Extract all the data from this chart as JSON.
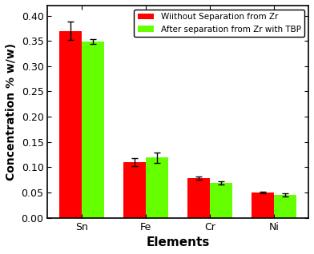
{
  "categories": [
    "Sn",
    "Fe",
    "Cr",
    "Ni"
  ],
  "values_red": [
    0.37,
    0.11,
    0.079,
    0.05
  ],
  "values_green": [
    0.349,
    0.119,
    0.069,
    0.045
  ],
  "errors_red": [
    0.018,
    0.008,
    0.003,
    0.002
  ],
  "errors_green": [
    0.005,
    0.01,
    0.003,
    0.003
  ],
  "color_red": "#FF0000",
  "color_green": "#66FF00",
  "xlabel": "Elements",
  "ylabel": "Concentration % w/w)",
  "ylim": [
    0,
    0.42
  ],
  "yticks": [
    0.0,
    0.05,
    0.1,
    0.15,
    0.2,
    0.25,
    0.3,
    0.35,
    0.4
  ],
  "legend_red": "Wiithout Separation from Zr",
  "legend_green": "After separation from Zr with TBP",
  "bar_width": 0.35,
  "background_color": "#ffffff",
  "plot_bg_color": "#ffffff"
}
